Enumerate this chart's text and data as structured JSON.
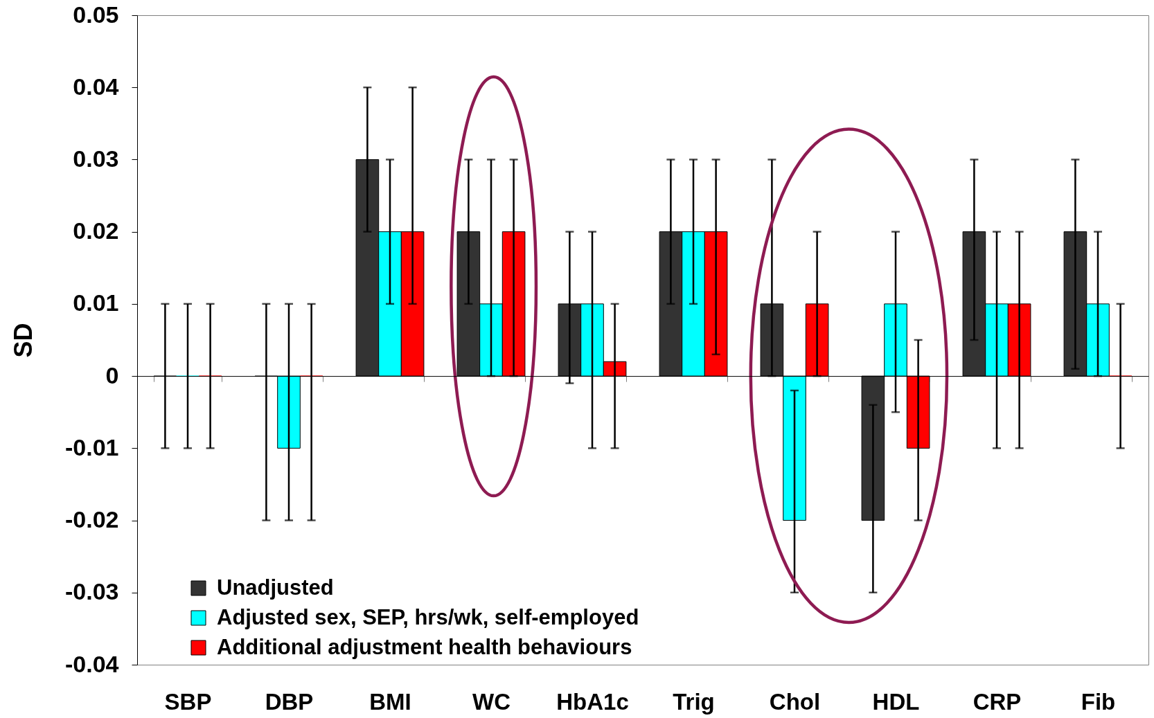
{
  "chart_data": {
    "type": "bar",
    "categories": [
      "SBP",
      "DBP",
      "BMI",
      "WC",
      "HbA1c",
      "Trig",
      "Chol",
      "HDL",
      "CRP",
      "Fib"
    ],
    "series": [
      {
        "name": "Unadjusted",
        "color": "#333333",
        "values": [
          0,
          0,
          0.03,
          0.02,
          0.01,
          0.02,
          0.01,
          -0.02,
          0.02,
          0.02
        ],
        "errors": [
          [
            -0.01,
            0.01
          ],
          [
            -0.02,
            0.01
          ],
          [
            0.02,
            0.04
          ],
          [
            0.01,
            0.03
          ],
          [
            -0.001,
            0.02
          ],
          [
            0.01,
            0.03
          ],
          [
            0,
            0.03
          ],
          [
            -0.03,
            -0.004
          ],
          [
            0.005,
            0.03
          ],
          [
            0.001,
            0.03
          ]
        ]
      },
      {
        "name": "Adjusted sex, SEP, hrs/wk, self-employed",
        "color": "#00ffff",
        "values": [
          0,
          -0.01,
          0.02,
          0.01,
          0.01,
          0.02,
          -0.02,
          0.01,
          0.01,
          0.01
        ],
        "errors": [
          [
            -0.01,
            0.01
          ],
          [
            -0.02,
            0.01
          ],
          [
            0.01,
            0.03
          ],
          [
            0,
            0.03
          ],
          [
            -0.01,
            0.02
          ],
          [
            0.01,
            0.03
          ],
          [
            -0.03,
            -0.002
          ],
          [
            -0.005,
            0.02
          ],
          [
            -0.01,
            0.02
          ],
          [
            0,
            0.02
          ]
        ]
      },
      {
        "name": "Additional adjustment health behaviours",
        "color": "#ff0000",
        "values": [
          0,
          0,
          0.02,
          0.02,
          0.002,
          0.02,
          0.01,
          -0.01,
          0.01,
          0
        ],
        "errors": [
          [
            -0.01,
            0.01
          ],
          [
            -0.02,
            0.01
          ],
          [
            0.01,
            0.04
          ],
          [
            0,
            0.03
          ],
          [
            -0.01,
            0.01
          ],
          [
            0.003,
            0.03
          ],
          [
            0,
            0.02
          ],
          [
            -0.02,
            0.005
          ],
          [
            -0.01,
            0.02
          ],
          [
            -0.01,
            0.01
          ]
        ]
      }
    ],
    "ylabel": "SD",
    "ylim": [
      -0.04,
      0.05
    ],
    "yticks": [
      -0.04,
      -0.03,
      -0.02,
      -0.01,
      0,
      0.01,
      0.02,
      0.03,
      0.04,
      0.05
    ],
    "legend": "bottom left"
  }
}
